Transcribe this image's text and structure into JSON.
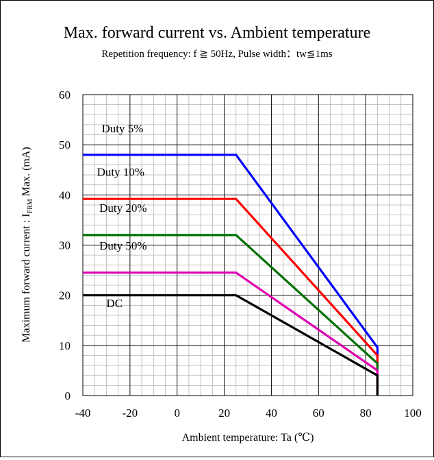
{
  "chart_data": {
    "type": "line",
    "title": "Max. forward current vs. Ambient temperature",
    "subtitle": "Repetition  frequency: f ≧ 50Hz, Pulse width：tw≦1ms",
    "xlabel": "Ambient temperature: Ta (℃)",
    "ylabel": {
      "prefix": "Maximum forward current : I",
      "subscript": "FRM",
      "suffix": " Max. (mA)"
    },
    "xlim": [
      -40,
      100
    ],
    "ylim": [
      0,
      60
    ],
    "x_ticks": [
      -40,
      -20,
      0,
      20,
      40,
      60,
      80,
      100
    ],
    "y_ticks": [
      0,
      10,
      20,
      30,
      40,
      50,
      60
    ],
    "x_minor_step": 5,
    "y_minor_step": 2,
    "grid": true,
    "series": [
      {
        "name": "Duty 5%",
        "color": "#0000ff",
        "x": [
          -40,
          25,
          85,
          85
        ],
        "y": [
          48,
          48,
          9.6,
          0
        ]
      },
      {
        "name": "Duty 10%",
        "color": "#ff0000",
        "x": [
          -40,
          25,
          85,
          85
        ],
        "y": [
          39.2,
          39.2,
          8,
          0
        ]
      },
      {
        "name": "Duty 20%",
        "color": "#007000",
        "x": [
          -40,
          25,
          85,
          85
        ],
        "y": [
          32,
          32,
          6.4,
          0
        ]
      },
      {
        "name": "Duty 50%",
        "color": "#e000b0",
        "x": [
          -40,
          25,
          85,
          85
        ],
        "y": [
          24.5,
          24.5,
          5,
          0
        ]
      },
      {
        "name": "DC",
        "color": "#000000",
        "x": [
          -40,
          25,
          85,
          85
        ],
        "y": [
          20,
          20,
          4,
          0
        ]
      }
    ],
    "series_label_anchors": [
      {
        "x": -32,
        "y": 52.5
      },
      {
        "x": -34,
        "y": 43.8
      },
      {
        "x": -33,
        "y": 36.6
      },
      {
        "x": -33,
        "y": 29.1
      },
      {
        "x": -30,
        "y": 17.6
      }
    ]
  }
}
